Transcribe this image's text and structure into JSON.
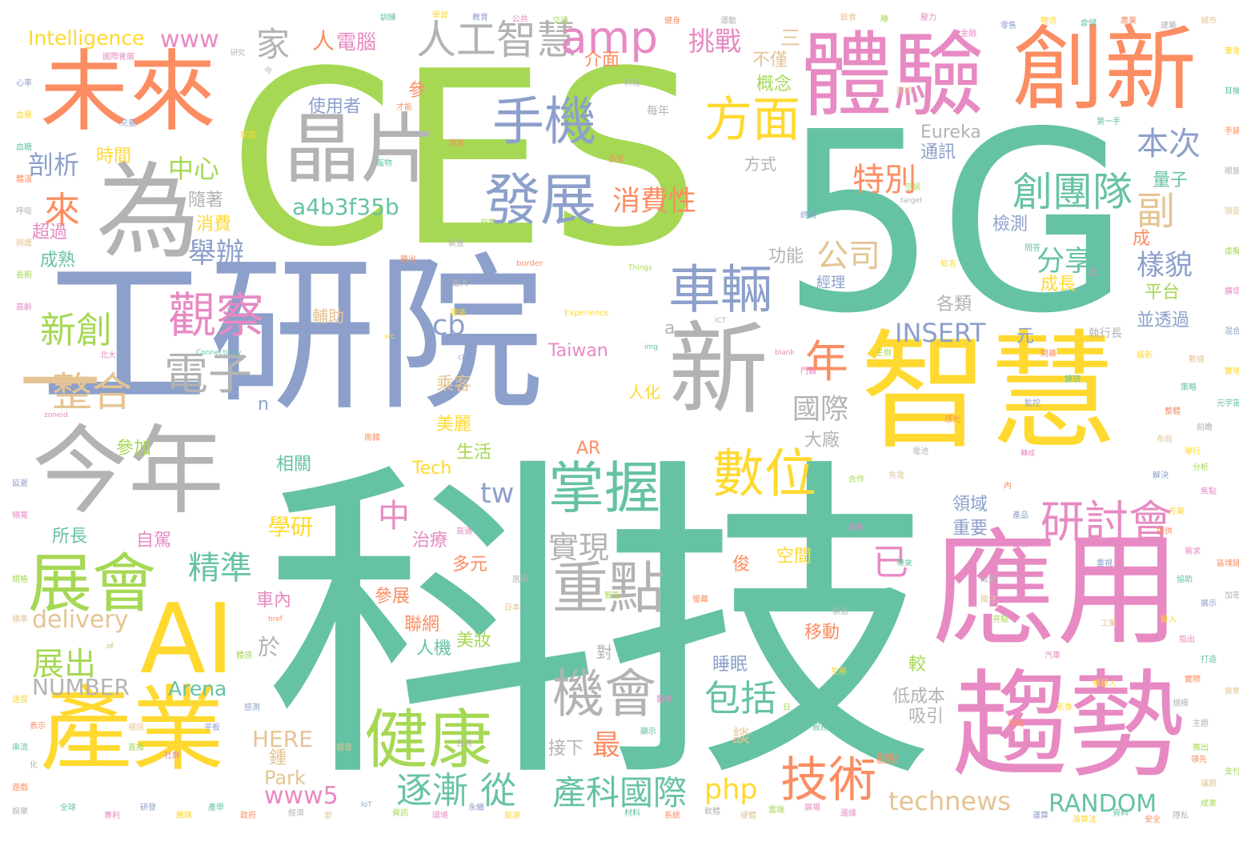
{
  "colors": {
    "green": "#66c2a5",
    "orange": "#fc8d62",
    "blue": "#8da0cb",
    "pink": "#e78ac3",
    "lime": "#a6d854",
    "yellow": "#ffd92f",
    "tan": "#e5c494",
    "gray": "#b3b3b3"
  },
  "words": [
    "科技",
    "5G",
    "CES",
    "工研院",
    "智慧",
    "應用",
    "趨勢",
    "體驗",
    "創新",
    "未來",
    "為",
    "今年",
    "產業",
    "AI",
    "晶片",
    "新",
    "一",
    "展會",
    "健康",
    "手機",
    "發展",
    "方面",
    "掌握",
    "重點",
    "數位",
    "技術",
    "機會",
    "人工智慧",
    "amp",
    "研討會",
    "創團隊",
    "車輛",
    "觀察",
    "電子",
    "整合",
    "年",
    "本次",
    "特別",
    "消費性",
    "a4b3f35b",
    "公司",
    "中心",
    "副",
    "剖析",
    "來",
    "舉辦",
    "新創",
    "分享",
    "樣貌",
    "INSERT",
    "cb",
    "國際",
    "實現",
    "包括",
    "逐漸",
    "從",
    "產科國際",
    "php",
    "technews",
    "RANDOM",
    "www5",
    "中",
    "tw",
    "已",
    "精準",
    "delivery",
    "展出",
    "NUMBER",
    "Arena",
    "HERE",
    "Park",
    "最",
    "挑戰",
    "家",
    "www",
    "Intelligence",
    "電腦",
    "人",
    "三",
    "介面",
    "不僅",
    "概念",
    "使用者",
    "時間",
    "隨著",
    "消費",
    "超過",
    "成熟",
    "方式",
    "Eureka",
    "通訊",
    "量子",
    "檢測",
    "成",
    "成長",
    "平台",
    "並透過",
    "執行長",
    "元",
    "功能",
    "經理",
    "各類",
    "Taiwan",
    "a",
    "n",
    "乘客",
    "美麗",
    "生活",
    "Tech",
    "參加",
    "相關",
    "AR",
    "學研",
    "所長",
    "自駕",
    "治療",
    "多元",
    "參展",
    "車內",
    "聯網",
    "人機",
    "美妝",
    "移動",
    "對",
    "睡眠",
    "較",
    "低成本",
    "吸引",
    "接下",
    "領域",
    "重要",
    "空間",
    "俊",
    "大廠",
    "於",
    "輔助",
    "人化",
    "每年",
    "參",
    "才能",
    "第一手",
    "國際會展",
    "研究",
    "target",
    "border",
    "blank",
    "Things",
    "ICT",
    "Experience",
    "Connectivity",
    "src",
    "img",
    "ck",
    "zoneid",
    "href",
    "of",
    "IoT",
    "表示",
    "化",
    "日",
    "談",
    "鍾",
    "觀點",
    "目前",
    "內",
    "國際",
    "轉成",
    "知名",
    "問答",
    "式",
    "主辦",
    "今",
    "多家",
    "智慧",
    "南韓",
    "高通",
    "台灣",
    "北大",
    "勝出",
    "連接",
    "智能",
    "最大",
    "日本",
    "開幕",
    "全球",
    "未來",
    "數據",
    "舉行",
    "展場",
    "規模",
    "推出",
    "帶來",
    "重視",
    "指出",
    "領先",
    "合作",
    "市場",
    "產品",
    "製造",
    "生態",
    "宣布",
    "服務",
    "工業",
    "網路",
    "影像",
    "醫療",
    "居家",
    "體感",
    "感測",
    "語音",
    "顯示",
    "螢幕",
    "汽車",
    "機器人",
    "穿戴",
    "裝置",
    "終端",
    "協助",
    "提供",
    "改變",
    "關注",
    "亮點",
    "焦點",
    "解決",
    "方案",
    "策略",
    "整體",
    "前瞻",
    "布局",
    "分析",
    "需求",
    "展示",
    "投入",
    "打造",
    "實際",
    "主題",
    "議題",
    "成果",
    "專利",
    "研發",
    "團隊",
    "產學",
    "政府",
    "經濟",
    "部",
    "資訊",
    "環境",
    "永續",
    "能源",
    "材料",
    "系統",
    "軟體",
    "硬體",
    "雲端",
    "邊緣",
    "運算",
    "演算法",
    "資料",
    "安全",
    "隱私",
    "標準",
    "規格",
    "頻寬",
    "延遲",
    "速度",
    "串流",
    "遊戲",
    "娛樂",
    "視訊",
    "直播",
    "社群",
    "平板",
    "筆電",
    "耳機",
    "手錶",
    "眼鏡",
    "頭盔",
    "虛擬",
    "擴增",
    "混合",
    "實境",
    "元宇宙",
    "區塊鏈",
    "加密",
    "貨幣",
    "支付",
    "金融",
    "零售",
    "物流",
    "倉儲",
    "農業",
    "建築",
    "城市",
    "交通",
    "公共",
    "教育",
    "學習",
    "訓練",
    "健身",
    "運動",
    "飲食",
    "睡",
    "壓力",
    "心率",
    "血壓",
    "血糖",
    "體溫",
    "呼吸",
    "照護",
    "長照",
    "高齡",
    "兒童",
    "家庭",
    "寵物",
    "清潔",
    "料理",
    "照明",
    "空調",
    "門鎖",
    "監控",
    "攝影",
    "鏡頭",
    "感光",
    "電池",
    "充電"
  ]
}
